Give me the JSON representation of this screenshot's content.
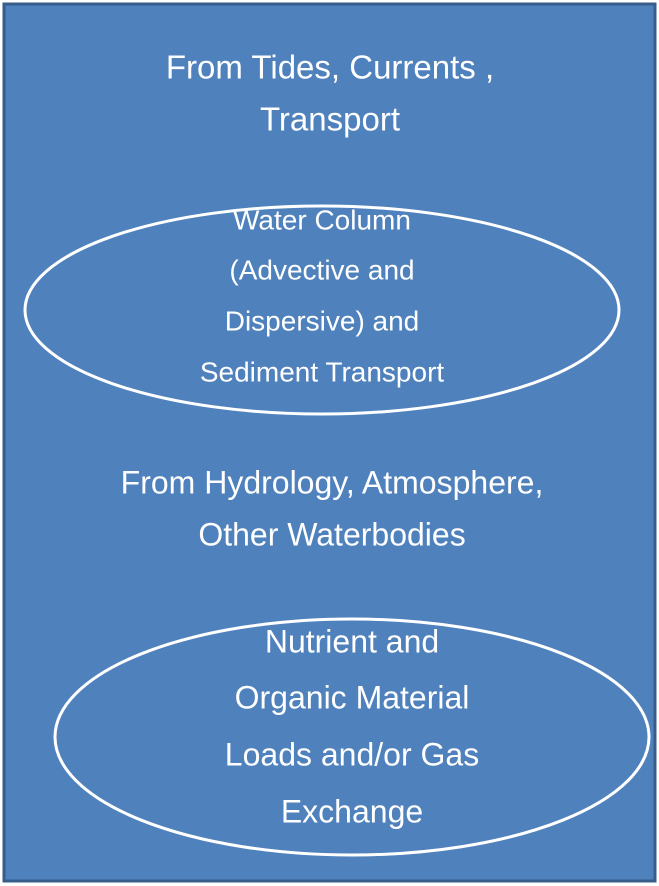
{
  "blocks": [
    {
      "kind": "heading",
      "lines": [
        "From Tides, Currents ,",
        "Transport"
      ]
    },
    {
      "kind": "ellipse",
      "lines": [
        "Water Column",
        "(Advective and",
        "Dispersive) and",
        "Sediment Transport"
      ]
    },
    {
      "kind": "heading",
      "lines": [
        "From Hydrology, Atmosphere,",
        "Other Waterbodies"
      ]
    },
    {
      "kind": "ellipse",
      "lines": [
        "Nutrient and",
        "Organic Material",
        "Loads and/or Gas",
        "Exchange"
      ]
    }
  ]
}
